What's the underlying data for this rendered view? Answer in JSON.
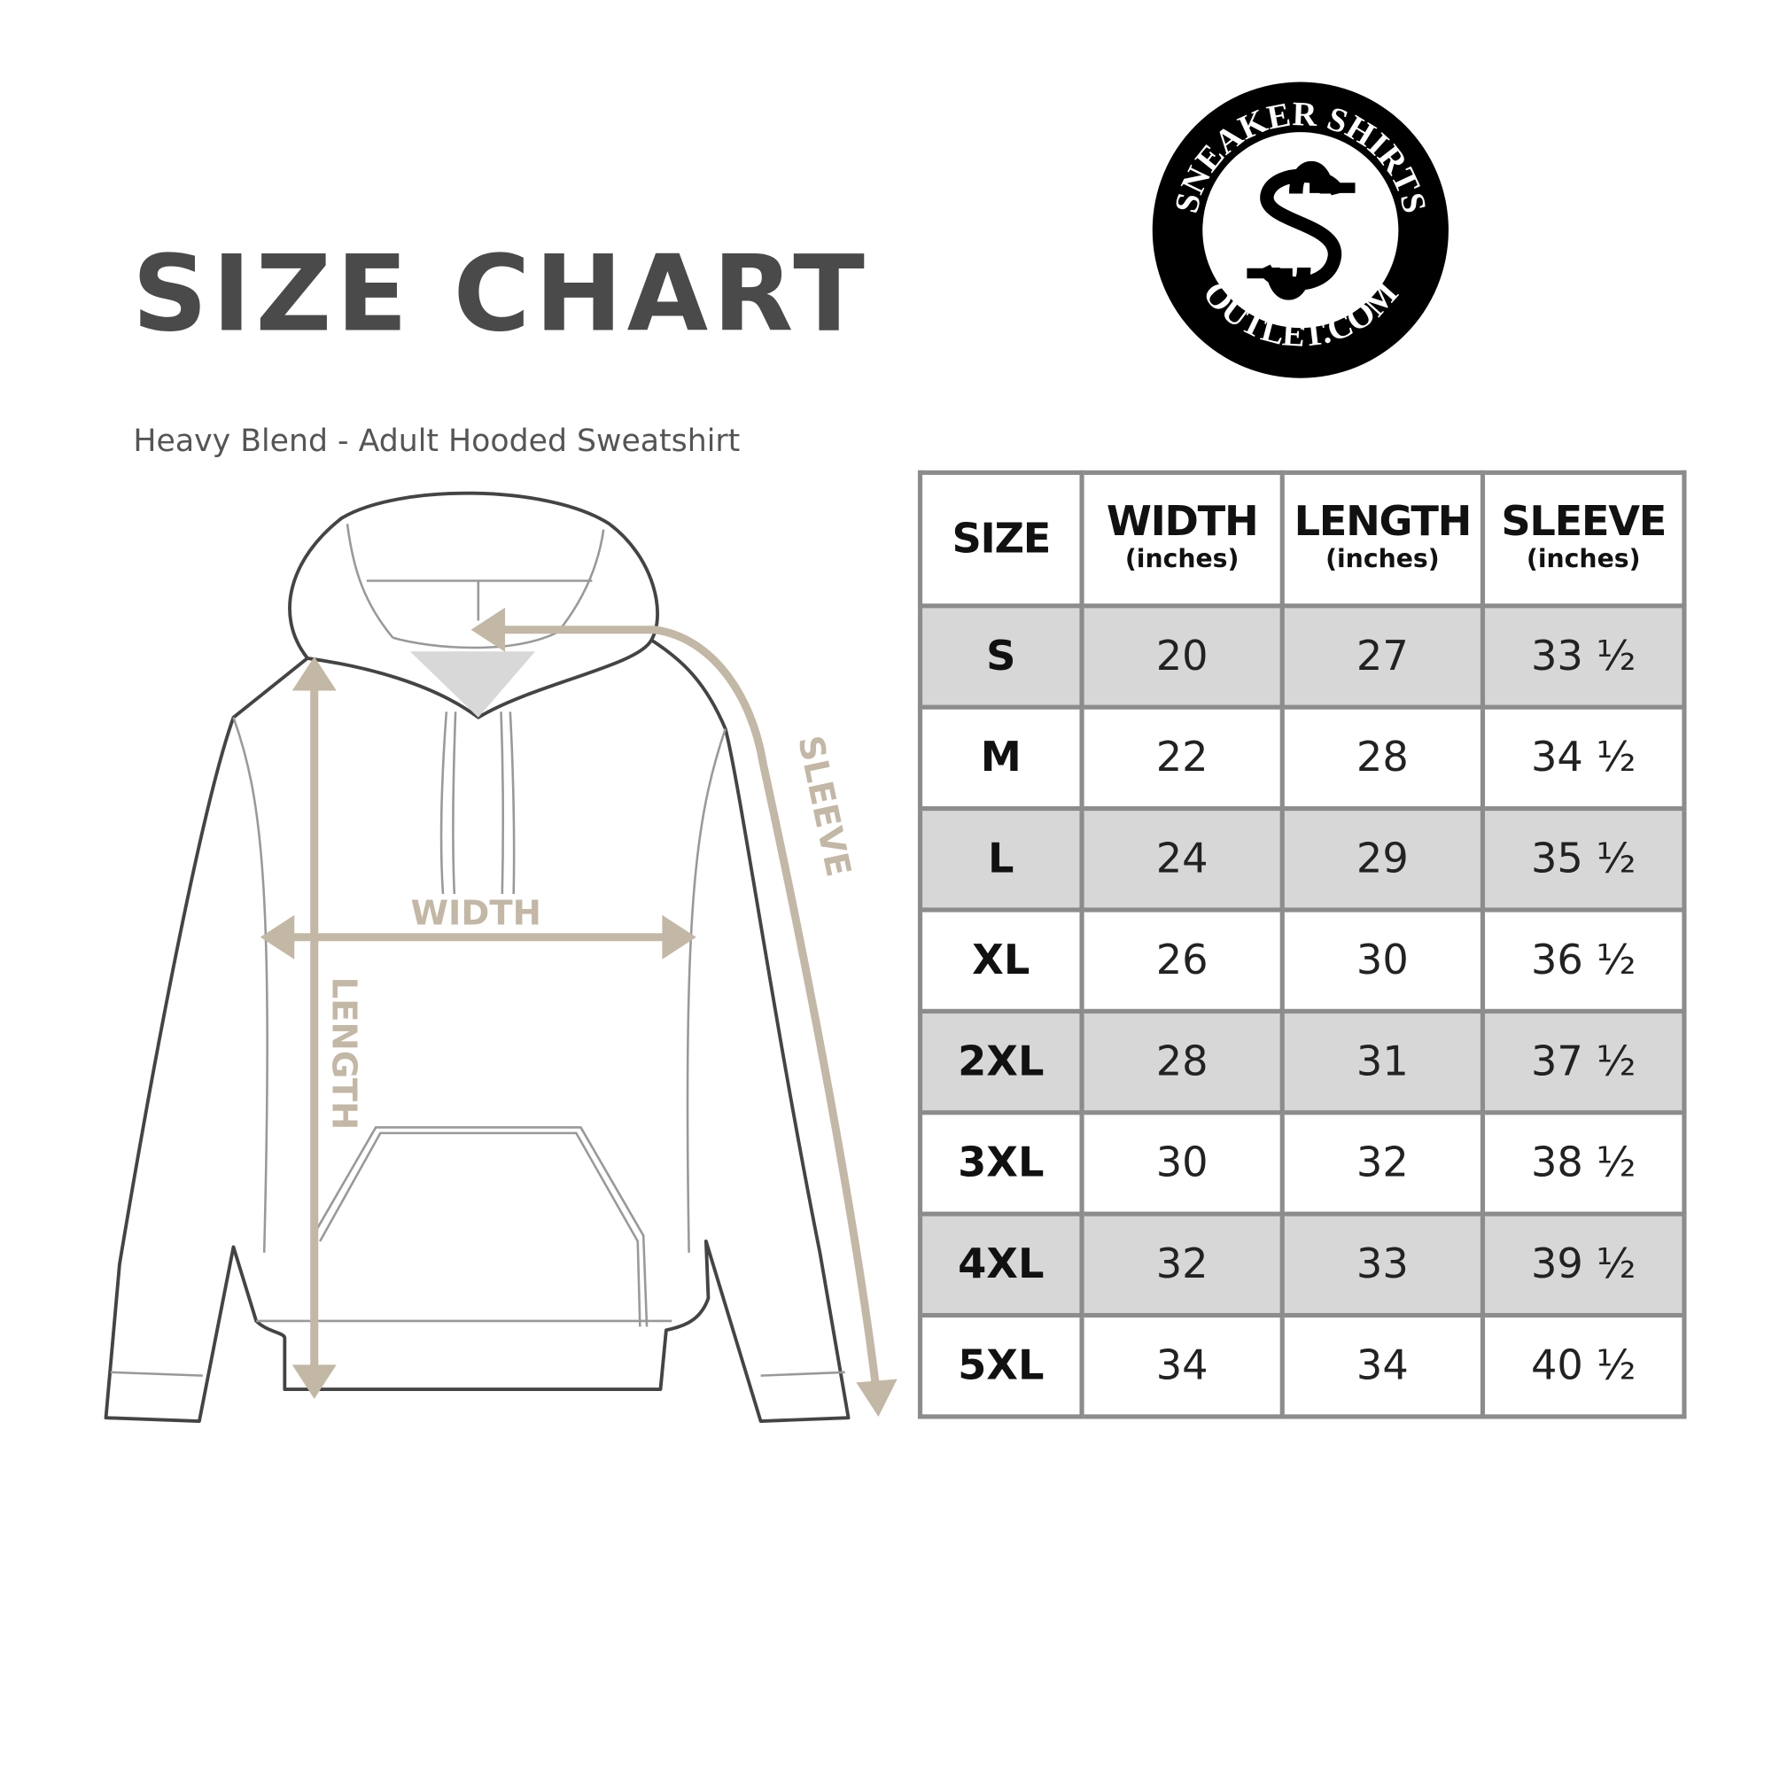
{
  "title": "SIZE CHART",
  "subtitle": "Heavy Blend - Adult Hooded Sweatshirt",
  "logo": {
    "top_text": "SNEAKER SHIRTS",
    "bottom_text": "OUTLET.COM",
    "monogram": "SS"
  },
  "diagram": {
    "width_label": "WIDTH",
    "length_label": "LENGTH",
    "sleeve_label": "SLEEVE",
    "arrow_color": "#c3b7a5"
  },
  "table": {
    "headers": [
      {
        "label": "SIZE",
        "unit": ""
      },
      {
        "label": "WIDTH",
        "unit": "(inches)"
      },
      {
        "label": "LENGTH",
        "unit": "(inches)"
      },
      {
        "label": "SLEEVE",
        "unit": "(inches)"
      }
    ],
    "rows": [
      [
        "S",
        "20",
        "27",
        "33 ½"
      ],
      [
        "M",
        "22",
        "28",
        "34 ½"
      ],
      [
        "L",
        "24",
        "29",
        "35 ½"
      ],
      [
        "XL",
        "26",
        "30",
        "36 ½"
      ],
      [
        "2XL",
        "28",
        "31",
        "37 ½"
      ],
      [
        "3XL",
        "30",
        "32",
        "38 ½"
      ],
      [
        "4XL",
        "32",
        "33",
        "39 ½"
      ],
      [
        "5XL",
        "34",
        "34",
        "40 ½"
      ]
    ]
  }
}
